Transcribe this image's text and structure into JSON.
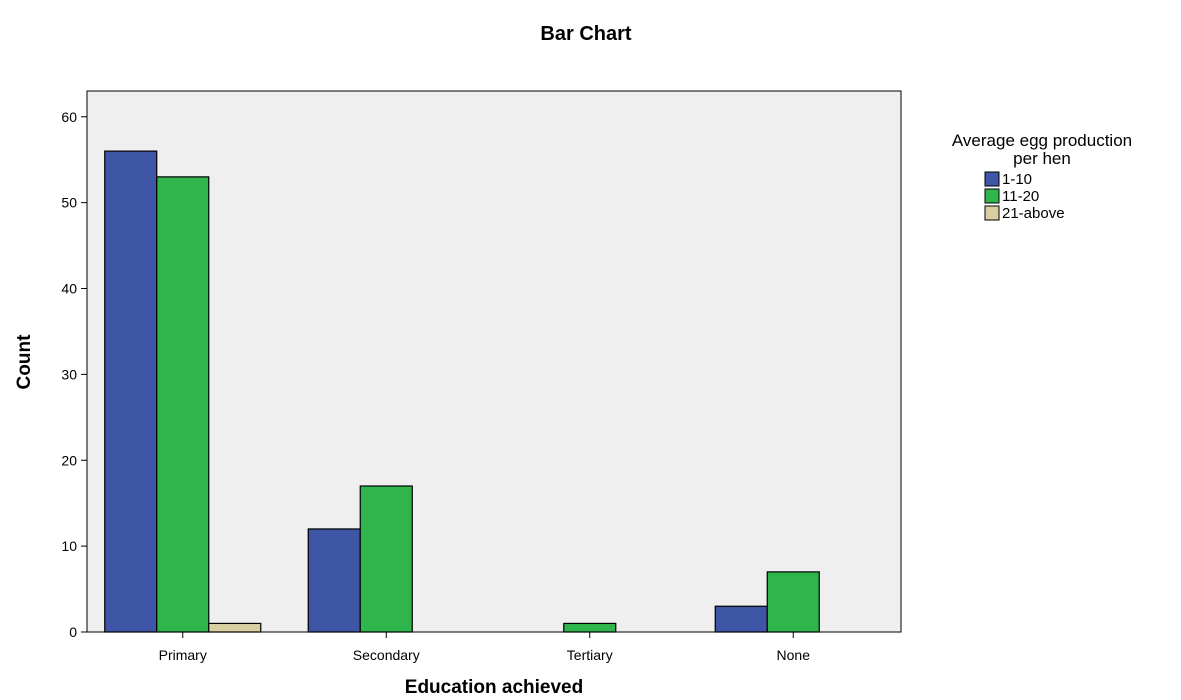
{
  "chart_data": {
    "type": "bar",
    "title": "Bar Chart",
    "xlabel": "Education achieved",
    "ylabel": "Count",
    "categories": [
      "Primary",
      "Secondary",
      "Tertiary",
      "None"
    ],
    "ylim": [
      0,
      63
    ],
    "yticks": [
      0,
      10,
      20,
      30,
      40,
      50,
      60
    ],
    "legend": {
      "title_lines": [
        "Average egg production",
        "per hen"
      ],
      "placement": "right"
    },
    "series": [
      {
        "name": "1-10",
        "color": "#3f55a5",
        "values": [
          56,
          12,
          0,
          3
        ]
      },
      {
        "name": "11-20",
        "color": "#2fb54b",
        "values": [
          53,
          17,
          1,
          7
        ]
      },
      {
        "name": "21-above",
        "color": "#d8d0a0",
        "values": [
          1,
          0,
          0,
          0
        ]
      }
    ],
    "plot_background": "#efefef",
    "grid": false
  }
}
